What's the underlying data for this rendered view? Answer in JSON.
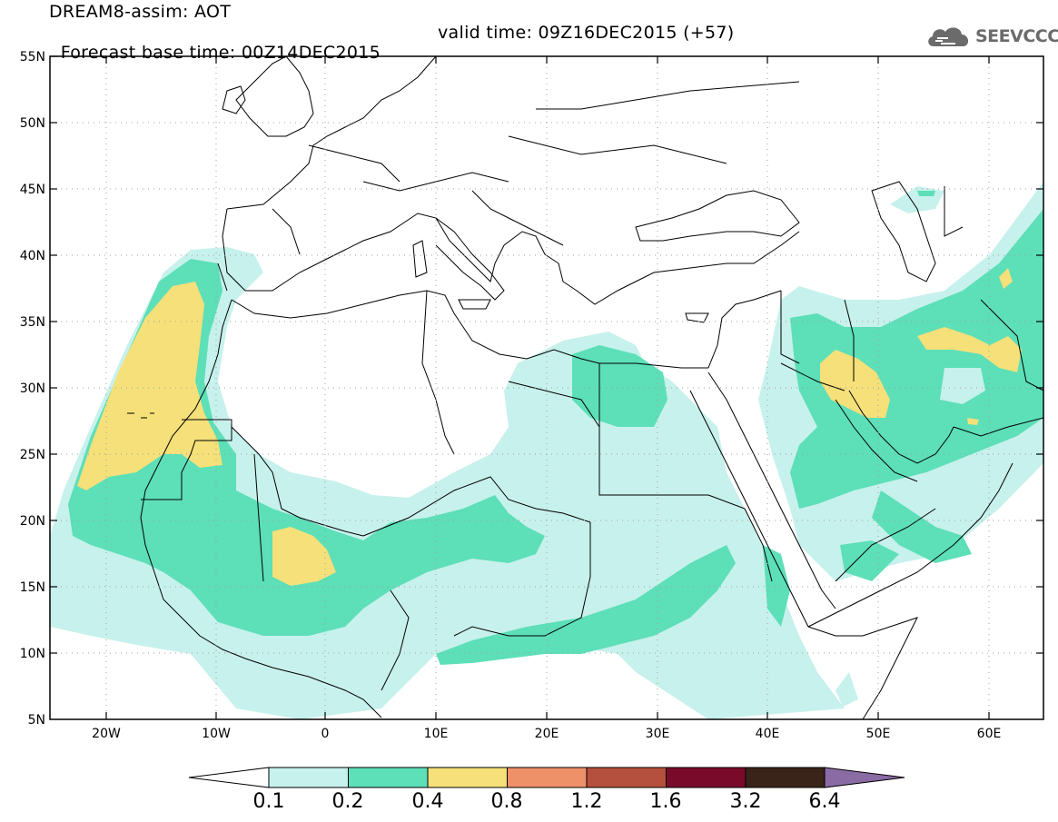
{
  "header": {
    "title": "DREAM8-assim: AOT",
    "base_time": "Forecast base time: 00Z14DEC2015",
    "valid_time": "valid time: 09Z16DEC2015 (+57)"
  },
  "logo": {
    "text": "SEEVCCC",
    "icon": "cloud-icon",
    "color": "#6b6b6b"
  },
  "map": {
    "lon_range": [
      -25,
      65
    ],
    "lat_range": [
      5,
      55
    ],
    "lat_labels": [
      "55N",
      "50N",
      "45N",
      "40N",
      "35N",
      "30N",
      "25N",
      "20N",
      "15N",
      "10N",
      "5N"
    ],
    "lon_labels": [
      "20W",
      "10W",
      "0",
      "10E",
      "20E",
      "30E",
      "40E",
      "50E",
      "60E"
    ],
    "grid": "dotted"
  },
  "colorbar": {
    "labels": [
      "0.1",
      "0.2",
      "0.4",
      "0.8",
      "1.2",
      "1.6",
      "3.2",
      "6.4"
    ],
    "colors": [
      "#c7f1ec",
      "#5ddfb8",
      "#f5e07a",
      "#ee9168",
      "#b4503d",
      "#7a0a2a",
      "#3a2419",
      "#8a6ba4"
    ],
    "extend": "both"
  }
}
